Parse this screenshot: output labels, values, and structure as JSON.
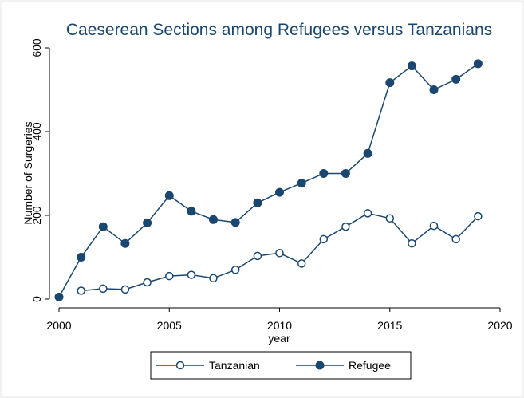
{
  "chart_data": {
    "type": "line",
    "title": "Caeserean Sections among Refugees versus Tanzanians",
    "xlabel": "year",
    "ylabel": "Number of Surgeries",
    "xlim": [
      2000,
      2020
    ],
    "ylim": [
      0,
      600
    ],
    "xticks": [
      2000,
      2005,
      2010,
      2015,
      2020
    ],
    "yticks": [
      0,
      200,
      400,
      600
    ],
    "grid": false,
    "legend_position": "bottom",
    "series": [
      {
        "name": "Tanzanian",
        "marker": "hollow-circle",
        "color": "#1a476f",
        "x": [
          2001,
          2002,
          2003,
          2004,
          2005,
          2006,
          2007,
          2008,
          2009,
          2010,
          2011,
          2012,
          2013,
          2014,
          2015,
          2016,
          2017,
          2018,
          2019
        ],
        "y": [
          20,
          25,
          23,
          40,
          55,
          58,
          50,
          70,
          103,
          110,
          85,
          143,
          173,
          205,
          193,
          133,
          175,
          143,
          198
        ]
      },
      {
        "name": "Refugee",
        "marker": "filled-circle",
        "color": "#1a476f",
        "x": [
          2000,
          2001,
          2002,
          2003,
          2004,
          2005,
          2006,
          2007,
          2008,
          2009,
          2010,
          2011,
          2012,
          2013,
          2014,
          2015,
          2016,
          2017,
          2018,
          2019
        ],
        "y": [
          5,
          100,
          173,
          133,
          182,
          247,
          210,
          190,
          183,
          230,
          255,
          277,
          300,
          300,
          348,
          517,
          557,
          500,
          525,
          562
        ]
      }
    ]
  }
}
